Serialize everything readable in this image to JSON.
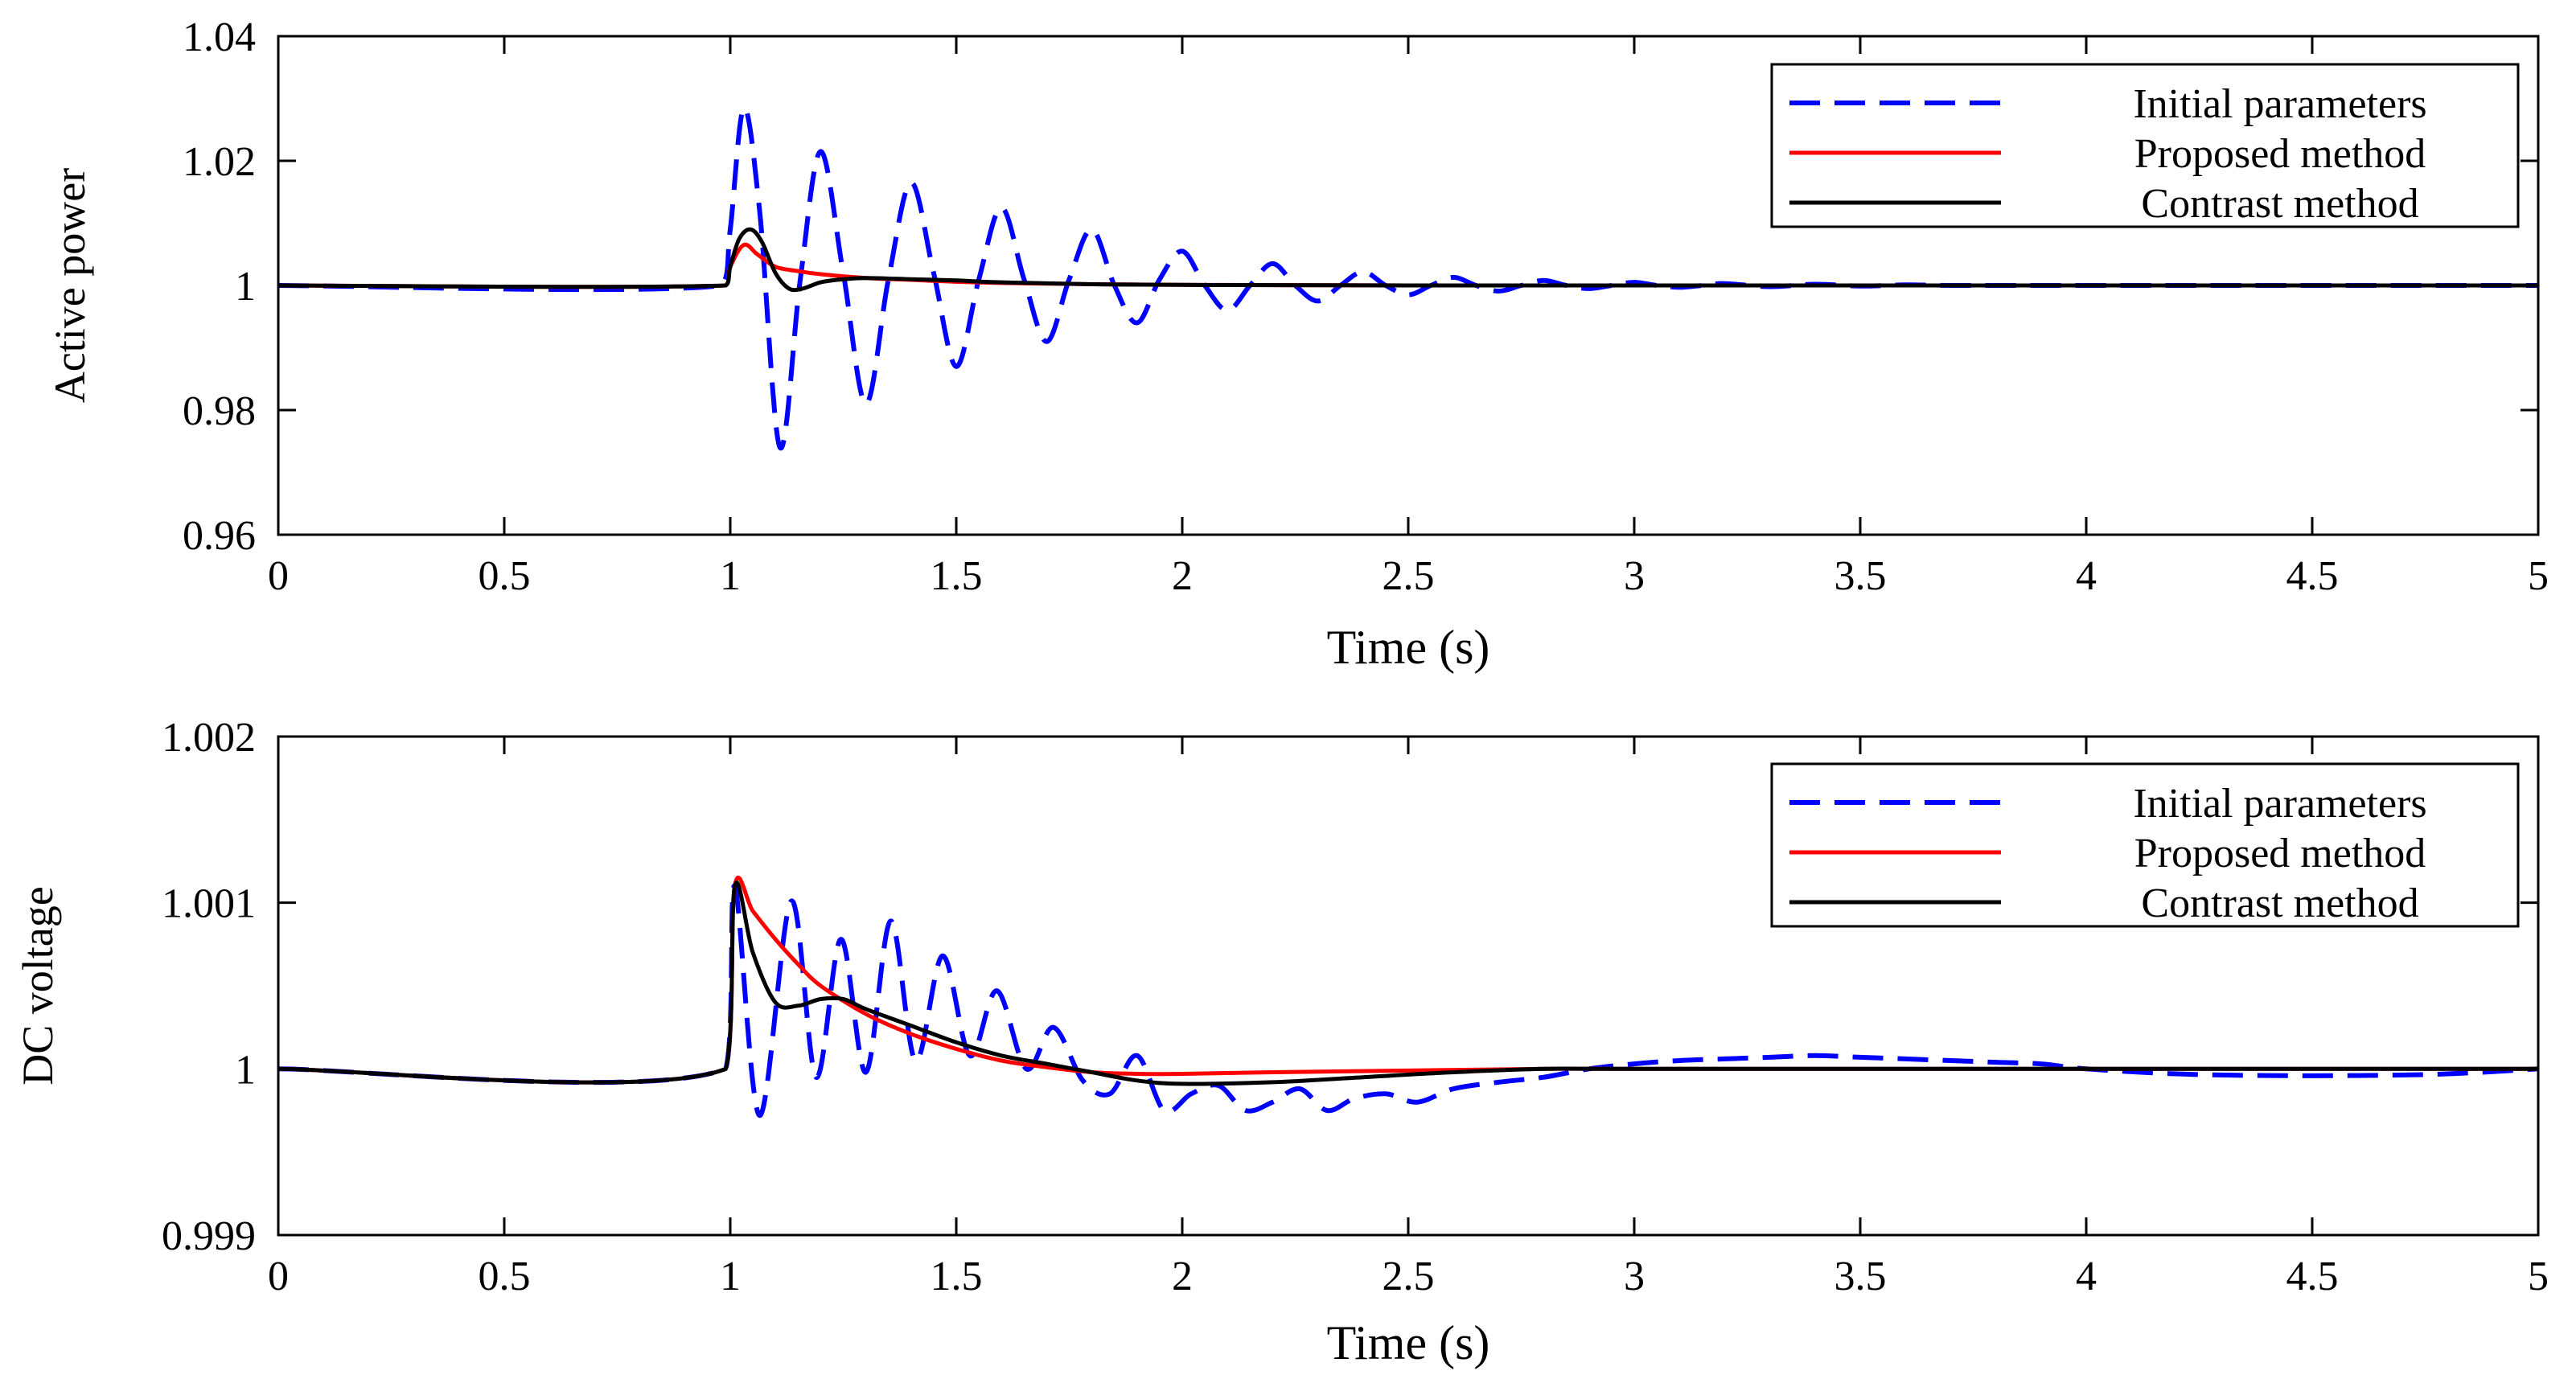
{
  "chart_data": [
    {
      "type": "line",
      "ylabel": "Active power",
      "xlabel": "Time (s)",
      "xlim": [
        0,
        5
      ],
      "ylim": [
        0.96,
        1.04
      ],
      "xticks": [
        0,
        0.5,
        1,
        1.5,
        2,
        2.5,
        3,
        3.5,
        4,
        4.5,
        5
      ],
      "xtick_labels": [
        "0",
        "0.5",
        "1",
        "1.5",
        "2",
        "2.5",
        "3",
        "3.5",
        "4",
        "4.5",
        "5"
      ],
      "yticks": [
        0.96,
        0.98,
        1,
        1.02,
        1.04
      ],
      "ytick_labels": [
        "0.96",
        "0.98",
        "1",
        "1.02",
        "1.04"
      ],
      "grid": false,
      "legend_position": "top-right",
      "series": [
        {
          "name": "Initial parameters",
          "color": "#0000ff",
          "style": "dashed",
          "x": [
            0,
            0.98,
            1.0,
            1.03,
            1.065,
            1.11,
            1.155,
            1.2,
            1.25,
            1.3,
            1.35,
            1.4,
            1.45,
            1.5,
            1.55,
            1.6,
            1.65,
            1.7,
            1.75,
            1.8,
            1.85,
            1.9,
            1.95,
            2.0,
            2.05,
            2.1,
            2.15,
            2.2,
            2.25,
            2.3,
            2.35,
            2.4,
            2.45,
            2.5,
            2.55,
            2.6,
            2.65,
            2.7,
            2.75,
            2.8,
            2.85,
            2.9,
            2.95,
            3.0,
            3.05,
            3.1,
            3.15,
            3.2,
            3.3,
            3.4,
            3.5,
            3.6,
            3.7,
            3.8,
            3.9,
            4.0,
            5.0
          ],
          "y": [
            1.0,
            1.0,
            1.009,
            1.0285,
            1.012,
            0.974,
            1.001,
            1.0215,
            1.002,
            0.981,
            1.001,
            1.0165,
            1.002,
            0.987,
            1.001,
            1.0125,
            1.001,
            0.991,
            1.001,
            1.009,
            1.0,
            0.994,
            1.001,
            1.0055,
            1.0,
            0.996,
            1.0,
            1.0035,
            1.0,
            0.9975,
            1.0,
            1.0022,
            1.0,
            0.9985,
            1.0,
            1.0013,
            1.0,
            0.9991,
            1.0,
            1.0008,
            1.0,
            0.9995,
            1.0,
            1.0005,
            1.0,
            0.9997,
            1.0,
            1.0003,
            0.9998,
            1.0002,
            0.9999,
            1.0001,
            1.0,
            1.0,
            1.0,
            1.0,
            1.0
          ]
        },
        {
          "name": "Proposed method",
          "color": "#ff0000",
          "style": "solid",
          "x": [
            0,
            0.99,
            1.0,
            1.03,
            1.06,
            1.1,
            1.15,
            1.2,
            1.3,
            1.4,
            1.5,
            1.6,
            1.7,
            1.8,
            2.0,
            2.2,
            2.5,
            2.7,
            5.0
          ],
          "y": [
            1.0,
            1.0,
            1.003,
            1.0065,
            1.005,
            1.003,
            1.0023,
            1.0018,
            1.0012,
            1.0009,
            1.0006,
            1.0004,
            1.0003,
            1.0002,
            1.0001,
            1.00005,
            1.0,
            1.0,
            1.0
          ]
        },
        {
          "name": "Contrast method",
          "color": "#000000",
          "style": "solid",
          "x": [
            0,
            0.99,
            1.0,
            1.02,
            1.045,
            1.07,
            1.1,
            1.13,
            1.16,
            1.2,
            1.25,
            1.3,
            1.4,
            1.5,
            1.6,
            1.8,
            2.0,
            2.5,
            5.0
          ],
          "y": [
            1.0,
            1.0,
            1.003,
            1.0075,
            1.009,
            1.007,
            1.002,
            0.9995,
            0.9995,
            1.0005,
            1.001,
            1.0012,
            1.001,
            1.0008,
            1.0005,
            1.0002,
            1.0001,
            1.0,
            1.0
          ]
        }
      ]
    },
    {
      "type": "line",
      "ylabel": "DC voltage",
      "xlabel": "Time (s)",
      "xlim": [
        0,
        5
      ],
      "ylim": [
        0.999,
        1.002
      ],
      "xticks": [
        0,
        0.5,
        1,
        1.5,
        2,
        2.5,
        3,
        3.5,
        4,
        4.5,
        5
      ],
      "xtick_labels": [
        "0",
        "0.5",
        "1",
        "1.5",
        "2",
        "2.5",
        "3",
        "3.5",
        "4",
        "4.5",
        "5"
      ],
      "yticks": [
        0.999,
        1,
        1.001,
        1.002
      ],
      "ytick_labels": [
        "0.999",
        "1",
        "1.001",
        "1.002"
      ],
      "grid": false,
      "legend_position": "top-right",
      "series": [
        {
          "name": "Initial parameters",
          "color": "#0000ff",
          "style": "dashed",
          "x": [
            0,
            0.99,
            1.01,
            1.065,
            1.135,
            1.19,
            1.245,
            1.3,
            1.355,
            1.41,
            1.47,
            1.53,
            1.59,
            1.655,
            1.715,
            1.78,
            1.84,
            1.9,
            1.96,
            2.02,
            2.08,
            2.14,
            2.2,
            2.26,
            2.32,
            2.38,
            2.45,
            2.52,
            2.6,
            2.7,
            2.8,
            2.9,
            3.0,
            3.1,
            3.2,
            3.3,
            3.4,
            3.5,
            3.6,
            3.7,
            3.8,
            3.9,
            4.0,
            4.2,
            4.4,
            4.6,
            4.8,
            5.0
          ],
          "y": [
            1.0,
            1.0,
            1.0011,
            0.99972,
            1.00101,
            0.99995,
            1.00078,
            0.99998,
            1.00089,
            1.00005,
            1.00068,
            1.00008,
            1.00047,
            1.0,
            1.00025,
            0.99993,
            0.99985,
            1.00008,
            0.99975,
            0.99985,
            0.9999,
            0.99975,
            0.9998,
            0.99988,
            0.99975,
            0.99982,
            0.99985,
            0.9998,
            0.99988,
            0.99992,
            0.99995,
            1.0,
            1.00003,
            1.00005,
            1.00006,
            1.00007,
            1.00008,
            1.00007,
            1.00006,
            1.00005,
            1.00004,
            1.00003,
            1.0,
            0.99997,
            0.99996,
            0.99996,
            0.99997,
            1.0
          ]
        },
        {
          "name": "Proposed method",
          "color": "#ff0000",
          "style": "solid",
          "x": [
            0,
            0.99,
            1.01,
            1.05,
            1.1,
            1.15,
            1.2,
            1.3,
            1.4,
            1.5,
            1.6,
            1.7,
            1.8,
            1.9,
            2.0,
            2.2,
            2.5,
            2.8,
            3.0,
            3.5,
            5.0
          ],
          "y": [
            1.0,
            1.0,
            1.0011,
            1.00095,
            1.00078,
            1.00063,
            1.0005,
            1.00033,
            1.00021,
            1.00012,
            1.00005,
            1.00001,
            0.99998,
            0.99997,
            0.99997,
            0.99998,
            0.99999,
            1.0,
            1.0,
            1.0,
            1.0
          ]
        },
        {
          "name": "Contrast method",
          "color": "#000000",
          "style": "solid",
          "x": [
            0,
            0.99,
            1.01,
            1.05,
            1.1,
            1.15,
            1.2,
            1.25,
            1.3,
            1.4,
            1.5,
            1.6,
            1.7,
            1.8,
            1.9,
            2.0,
            2.2,
            2.4,
            2.6,
            2.8,
            3.0,
            5.0
          ],
          "y": [
            1.0,
            1.0,
            1.0011,
            1.0007,
            1.0004,
            1.00038,
            1.00042,
            1.00042,
            1.00036,
            1.00026,
            1.00016,
            1.00008,
            1.00003,
            0.99998,
            0.99993,
            0.99991,
            0.99992,
            0.99995,
            0.99998,
            1.0,
            1.0,
            1.0
          ]
        }
      ]
    }
  ]
}
